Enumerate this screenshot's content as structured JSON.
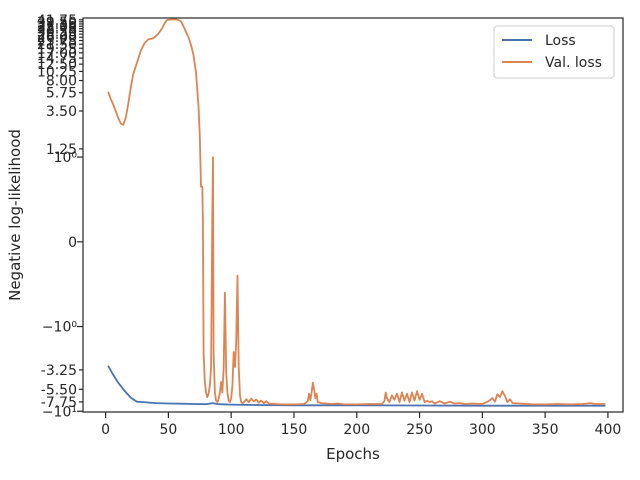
{
  "chart_data": {
    "type": "line",
    "xlabel": "Epochs",
    "ylabel": "Negative log-likelihood",
    "xlim": [
      -18,
      412
    ],
    "xticks": [
      0,
      50,
      100,
      150,
      200,
      250,
      300,
      350,
      400
    ],
    "yticks_minor": [
      {
        "label": "41.75",
        "value": 41.75
      },
      {
        "label": "39.50",
        "value": 39.5
      },
      {
        "label": "37.25",
        "value": 37.25
      },
      {
        "label": "35.00",
        "value": 35.0
      },
      {
        "label": "32.75",
        "value": 32.75
      },
      {
        "label": "30.50",
        "value": 30.5
      },
      {
        "label": "28.25",
        "value": 28.25
      },
      {
        "label": "26.00",
        "value": 26.0
      },
      {
        "label": "23.75",
        "value": 23.75
      },
      {
        "label": "21.50",
        "value": 21.5
      },
      {
        "label": "19.25",
        "value": 19.25
      },
      {
        "label": "17.00",
        "value": 17.0
      },
      {
        "label": "14.75",
        "value": 14.75
      },
      {
        "label": "12.50",
        "value": 12.5
      },
      {
        "label": "10.25",
        "value": 10.25
      },
      {
        "label": "8.00",
        "value": 8.0
      },
      {
        "label": "5.75",
        "value": 5.75
      },
      {
        "label": "3.50",
        "value": 3.5
      },
      {
        "label": "1.25",
        "value": 1.25
      },
      {
        "label": "-3.25",
        "value": -3.25
      },
      {
        "label": "-5.50",
        "value": -5.5
      },
      {
        "label": "-7.75",
        "value": -7.75
      }
    ],
    "yticks_major": [
      {
        "label": "10⁰",
        "value": 1
      },
      {
        "label": "0",
        "value": 0
      },
      {
        "label": "−10⁰",
        "value": -1
      },
      {
        "label": "−10¹",
        "value": -10
      }
    ],
    "legend_position": "top-right",
    "grid": false,
    "series": [
      {
        "name": "Loss",
        "color": "#4c72b0",
        "points": [
          [
            2,
            -2.9
          ],
          [
            5,
            -3.5
          ],
          [
            10,
            -4.6
          ],
          [
            15,
            -5.7
          ],
          [
            20,
            -6.9
          ],
          [
            25,
            -7.7
          ],
          [
            30,
            -7.8
          ],
          [
            40,
            -8.0
          ],
          [
            50,
            -8.1
          ],
          [
            60,
            -8.15
          ],
          [
            70,
            -8.2
          ],
          [
            80,
            -8.25
          ],
          [
            85,
            -8.0
          ],
          [
            90,
            -8.25
          ],
          [
            100,
            -8.35
          ],
          [
            110,
            -8.4
          ],
          [
            130,
            -8.45
          ],
          [
            150,
            -8.5
          ],
          [
            200,
            -8.5
          ],
          [
            250,
            -8.55
          ],
          [
            300,
            -8.6
          ],
          [
            350,
            -8.6
          ],
          [
            398,
            -8.6
          ]
        ]
      },
      {
        "name": "Val. loss",
        "color": "#dd8452",
        "points": [
          [
            2,
            5.9
          ],
          [
            4,
            4.9
          ],
          [
            6,
            4.2
          ],
          [
            8,
            3.5
          ],
          [
            10,
            2.9
          ],
          [
            12,
            2.5
          ],
          [
            14,
            2.4
          ],
          [
            16,
            2.9
          ],
          [
            18,
            4.2
          ],
          [
            20,
            6.5
          ],
          [
            22,
            9.5
          ],
          [
            25,
            13.0
          ],
          [
            28,
            18.0
          ],
          [
            31,
            22.0
          ],
          [
            34,
            24.5
          ],
          [
            38,
            25.2
          ],
          [
            42,
            28.5
          ],
          [
            45,
            33.0
          ],
          [
            47,
            38.0
          ],
          [
            49,
            41.5
          ],
          [
            52,
            42.0
          ],
          [
            56,
            42.2
          ],
          [
            58,
            41.5
          ],
          [
            60,
            40.0
          ],
          [
            62,
            35.0
          ],
          [
            64,
            30.0
          ],
          [
            66,
            26.0
          ],
          [
            68,
            21.0
          ],
          [
            70,
            16.0
          ],
          [
            72,
            10.0
          ],
          [
            74,
            4.0
          ],
          [
            75,
            1.8
          ],
          [
            76,
            0.65
          ],
          [
            77,
            0.65
          ],
          [
            77.5,
            0.25
          ],
          [
            78,
            -2.0
          ],
          [
            79,
            -4.5
          ],
          [
            80,
            -6.0
          ],
          [
            81,
            -6.8
          ],
          [
            82,
            -6.2
          ],
          [
            83,
            -5.0
          ],
          [
            84,
            -3.0
          ],
          [
            85,
            0.3
          ],
          [
            85.5,
            1.0
          ],
          [
            86,
            -2.0
          ],
          [
            87,
            -6.0
          ],
          [
            88,
            -7.5
          ],
          [
            89,
            -7.8
          ],
          [
            90,
            -7.2
          ],
          [
            91,
            -6.0
          ],
          [
            92,
            -4.5
          ],
          [
            93,
            -6.0
          ],
          [
            94,
            -3.0
          ],
          [
            95,
            -0.6
          ],
          [
            96,
            -3.5
          ],
          [
            97,
            -6.0
          ],
          [
            98,
            -7.5
          ],
          [
            99,
            -7.8
          ],
          [
            100,
            -7.0
          ],
          [
            101,
            -5.0
          ],
          [
            102,
            -2.0
          ],
          [
            103,
            -3.0
          ],
          [
            104,
            -1.5
          ],
          [
            105,
            -0.4
          ],
          [
            106,
            -3.0
          ],
          [
            107,
            -6.5
          ],
          [
            108,
            -7.8
          ],
          [
            109,
            -8.0
          ],
          [
            110,
            -7.9
          ],
          [
            112,
            -7.2
          ],
          [
            114,
            -7.8
          ],
          [
            116,
            -7.1
          ],
          [
            118,
            -7.6
          ],
          [
            120,
            -7.3
          ],
          [
            122,
            -7.9
          ],
          [
            124,
            -7.5
          ],
          [
            126,
            -8.0
          ],
          [
            128,
            -7.6
          ],
          [
            130,
            -8.1
          ],
          [
            135,
            -8.2
          ],
          [
            140,
            -8.3
          ],
          [
            150,
            -8.3
          ],
          [
            158,
            -8.2
          ],
          [
            161,
            -7.6
          ],
          [
            162,
            -6.2
          ],
          [
            163,
            -7.4
          ],
          [
            164,
            -6.0
          ],
          [
            165,
            -4.6
          ],
          [
            166,
            -5.5
          ],
          [
            167,
            -7.0
          ],
          [
            168,
            -6.2
          ],
          [
            169,
            -7.8
          ],
          [
            172,
            -8.0
          ],
          [
            176,
            -8.1
          ],
          [
            180,
            -8.2
          ],
          [
            185,
            -8.1
          ],
          [
            190,
            -8.3
          ],
          [
            200,
            -8.3
          ],
          [
            210,
            -8.2
          ],
          [
            220,
            -8.2
          ],
          [
            222,
            -7.6
          ],
          [
            223,
            -6.0
          ],
          [
            224,
            -7.0
          ],
          [
            226,
            -7.8
          ],
          [
            228,
            -6.5
          ],
          [
            230,
            -7.3
          ],
          [
            232,
            -6.2
          ],
          [
            234,
            -7.8
          ],
          [
            236,
            -6.0
          ],
          [
            238,
            -7.5
          ],
          [
            240,
            -6.2
          ],
          [
            242,
            -7.8
          ],
          [
            244,
            -6.0
          ],
          [
            246,
            -7.5
          ],
          [
            248,
            -5.8
          ],
          [
            250,
            -7.3
          ],
          [
            252,
            -6.2
          ],
          [
            254,
            -7.8
          ],
          [
            256,
            -7.5
          ],
          [
            258,
            -7.8
          ],
          [
            260,
            -7.6
          ],
          [
            262,
            -8.1
          ],
          [
            266,
            -7.6
          ],
          [
            270,
            -8.1
          ],
          [
            274,
            -7.7
          ],
          [
            278,
            -8.1
          ],
          [
            282,
            -8.0
          ],
          [
            286,
            -8.2
          ],
          [
            292,
            -8.1
          ],
          [
            300,
            -8.2
          ],
          [
            305,
            -7.6
          ],
          [
            308,
            -7.0
          ],
          [
            310,
            -7.7
          ],
          [
            312,
            -6.3
          ],
          [
            314,
            -6.8
          ],
          [
            316,
            -5.8
          ],
          [
            318,
            -6.6
          ],
          [
            320,
            -7.8
          ],
          [
            322,
            -7.2
          ],
          [
            324,
            -8.0
          ],
          [
            330,
            -8.1
          ],
          [
            340,
            -8.3
          ],
          [
            350,
            -8.3
          ],
          [
            360,
            -8.2
          ],
          [
            370,
            -8.3
          ],
          [
            380,
            -8.2
          ],
          [
            386,
            -8.0
          ],
          [
            390,
            -8.2
          ],
          [
            398,
            -8.2
          ]
        ]
      }
    ]
  }
}
